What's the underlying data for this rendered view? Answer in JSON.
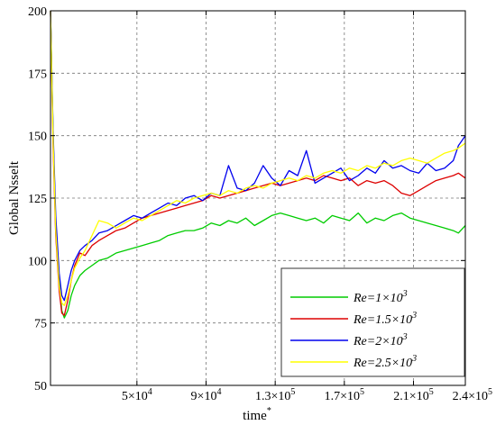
{
  "chart_data": {
    "type": "line",
    "xlabel": "time",
    "xlabel_superscript": "*",
    "ylabel": "Global Nsselt",
    "xlim": [
      0,
      240000
    ],
    "ylim": [
      50,
      200
    ],
    "grid": true,
    "legend_position": "bottom-right",
    "x_ticks": [
      {
        "value": 50000,
        "base": "5×10",
        "exp": "4"
      },
      {
        "value": 90000,
        "base": "9×10",
        "exp": "4"
      },
      {
        "value": 130000,
        "base": "1.3×10",
        "exp": "5"
      },
      {
        "value": 170000,
        "base": "1.7×10",
        "exp": "5"
      },
      {
        "value": 210000,
        "base": "2.1×10",
        "exp": "5"
      },
      {
        "value": 240000,
        "base": "2.4×10",
        "exp": "5"
      }
    ],
    "y_ticks": [
      {
        "value": 50,
        "label": "50"
      },
      {
        "value": 75,
        "label": "75"
      },
      {
        "value": 100,
        "label": "100"
      },
      {
        "value": 125,
        "label": "125"
      },
      {
        "value": 150,
        "label": "150"
      },
      {
        "value": 175,
        "label": "175"
      },
      {
        "value": 200,
        "label": "200"
      }
    ],
    "series": [
      {
        "name": "Re=1×10",
        "name_exp": "3",
        "color": "#00cc00",
        "x": [
          0,
          1500,
          3000,
          5000,
          6500,
          8000,
          10000,
          12000,
          14000,
          17000,
          20000,
          24000,
          28000,
          33000,
          38000,
          43000,
          48000,
          53000,
          58000,
          63000,
          68000,
          73000,
          78000,
          83000,
          88000,
          93000,
          98000,
          103000,
          108000,
          113000,
          118000,
          123000,
          128000,
          133000,
          138000,
          143000,
          148000,
          153000,
          158000,
          163000,
          168000,
          173000,
          178000,
          183000,
          188000,
          193000,
          198000,
          203000,
          208000,
          213000,
          218000,
          223000,
          228000,
          233000,
          236000,
          240000
        ],
        "y": [
          200,
          150,
          115,
          92,
          80,
          77,
          80,
          86,
          90,
          94,
          96,
          98,
          100,
          101,
          103,
          104,
          105,
          106,
          107,
          108,
          110,
          111,
          112,
          112,
          113,
          115,
          114,
          116,
          115,
          117,
          114,
          116,
          118,
          119,
          118,
          117,
          116,
          117,
          115,
          118,
          117,
          116,
          119,
          115,
          117,
          116,
          118,
          119,
          117,
          116,
          115,
          114,
          113,
          112,
          111,
          114
        ]
      },
      {
        "name": "Re=1.5×10",
        "name_exp": "3",
        "color": "#dd0000",
        "x": [
          0,
          1500,
          3000,
          5000,
          6500,
          8000,
          10000,
          12000,
          14000,
          17000,
          20000,
          24000,
          28000,
          33000,
          38000,
          43000,
          48000,
          53000,
          58000,
          63000,
          68000,
          73000,
          78000,
          83000,
          88000,
          93000,
          98000,
          103000,
          108000,
          113000,
          118000,
          123000,
          128000,
          133000,
          138000,
          143000,
          148000,
          153000,
          158000,
          163000,
          168000,
          173000,
          178000,
          183000,
          188000,
          193000,
          198000,
          203000,
          208000,
          213000,
          218000,
          223000,
          228000,
          233000,
          236000,
          240000
        ],
        "y": [
          200,
          145,
          110,
          88,
          79,
          78,
          84,
          92,
          98,
          103,
          102,
          106,
          108,
          110,
          112,
          113,
          115,
          117,
          118,
          119,
          120,
          121,
          122,
          123,
          124,
          126,
          125,
          126,
          127,
          128,
          129,
          130,
          131,
          130,
          131,
          132,
          133,
          132,
          134,
          133,
          132,
          133,
          130,
          132,
          131,
          132,
          130,
          127,
          126,
          128,
          130,
          132,
          133,
          134,
          135,
          133
        ]
      },
      {
        "name": "Re=2×10",
        "name_exp": "3",
        "color": "#0000ee",
        "x": [
          0,
          1500,
          3000,
          5000,
          6500,
          8000,
          10000,
          12000,
          14000,
          17000,
          20000,
          24000,
          28000,
          33000,
          38000,
          43000,
          48000,
          53000,
          58000,
          63000,
          68000,
          73000,
          78000,
          83000,
          88000,
          93000,
          98000,
          103000,
          108000,
          113000,
          118000,
          123000,
          128000,
          133000,
          138000,
          143000,
          148000,
          153000,
          158000,
          163000,
          168000,
          173000,
          178000,
          183000,
          188000,
          193000,
          198000,
          203000,
          208000,
          213000,
          218000,
          223000,
          228000,
          233000,
          236000,
          240000
        ],
        "y": [
          200,
          152,
          118,
          95,
          86,
          84,
          90,
          96,
          100,
          104,
          106,
          108,
          111,
          112,
          114,
          116,
          118,
          117,
          119,
          121,
          123,
          122,
          125,
          126,
          124,
          127,
          126,
          138,
          129,
          128,
          131,
          138,
          133,
          130,
          136,
          134,
          144,
          131,
          133,
          135,
          137,
          132,
          134,
          137,
          135,
          140,
          137,
          138,
          136,
          135,
          139,
          136,
          137,
          140,
          146,
          150
        ]
      },
      {
        "name": "Re=2.5×10",
        "name_exp": "3",
        "color": "#ffff00",
        "x": [
          0,
          1500,
          3000,
          5000,
          6500,
          8000,
          10000,
          12000,
          14000,
          17000,
          20000,
          24000,
          28000,
          33000,
          38000,
          43000,
          48000,
          53000,
          58000,
          63000,
          68000,
          73000,
          78000,
          83000,
          88000,
          93000,
          98000,
          103000,
          108000,
          113000,
          118000,
          123000,
          128000,
          133000,
          138000,
          143000,
          148000,
          153000,
          158000,
          163000,
          168000,
          173000,
          178000,
          183000,
          188000,
          193000,
          198000,
          203000,
          208000,
          213000,
          218000,
          223000,
          228000,
          233000,
          236000,
          240000
        ],
        "y": [
          200,
          148,
          112,
          90,
          83,
          82,
          86,
          92,
          97,
          101,
          104,
          110,
          116,
          115,
          113,
          115,
          117,
          116,
          118,
          120,
          122,
          124,
          123,
          125,
          126,
          127,
          126,
          128,
          127,
          129,
          130,
          129,
          131,
          132,
          133,
          132,
          134,
          133,
          135,
          136,
          135,
          137,
          136,
          138,
          137,
          139,
          138,
          140,
          141,
          140,
          139,
          141,
          143,
          144,
          145,
          147
        ]
      }
    ]
  }
}
